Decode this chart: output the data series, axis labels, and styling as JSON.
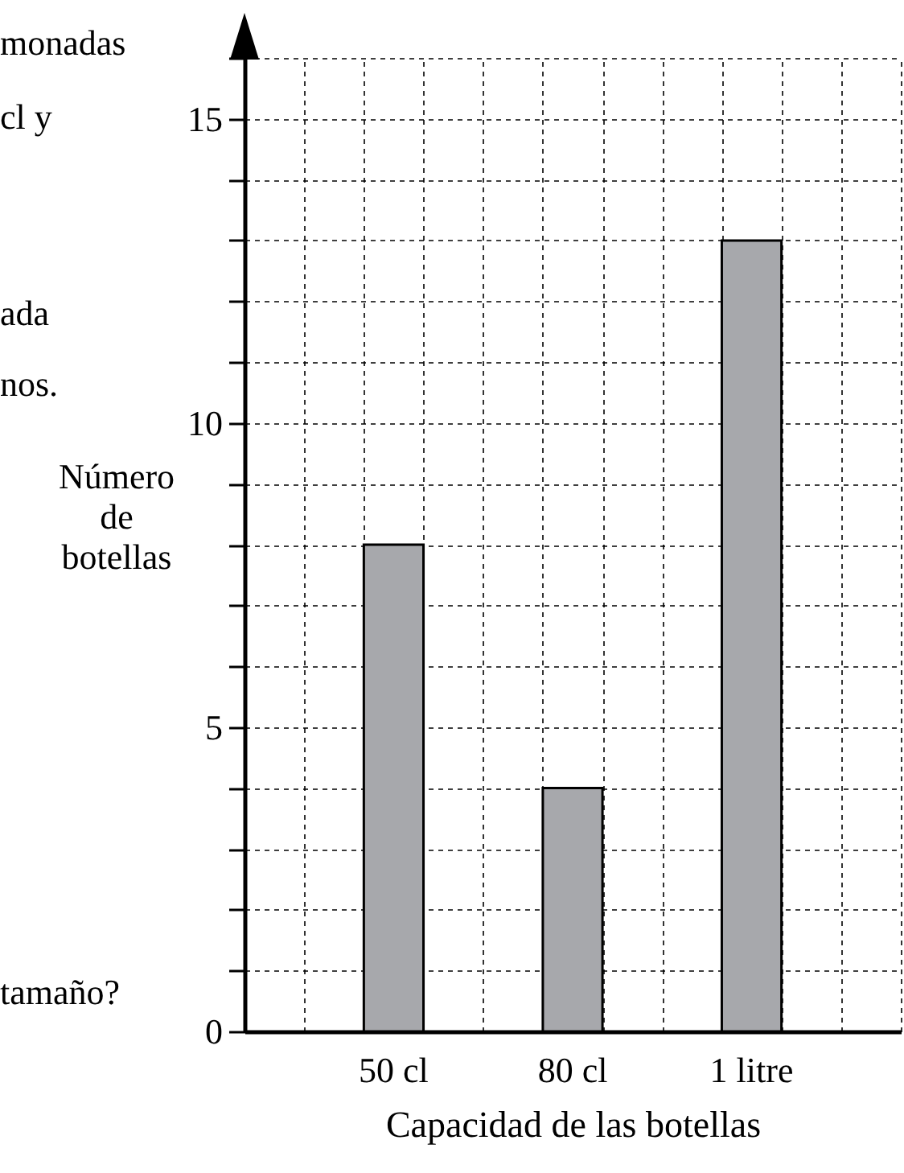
{
  "chart_data": {
    "type": "bar",
    "xlabel": "Capacidad de las botellas",
    "ylabel": "Número de botellas",
    "categories": [
      "50 cl",
      "80 cl",
      "1 litre"
    ],
    "values": [
      8,
      4,
      13
    ],
    "color": "#a7a8ac",
    "ylim": [
      0,
      16
    ],
    "yticks": [
      0,
      {
        "value": 1,
        "label": null
      },
      {
        "value": 2,
        "label": null
      },
      {
        "value": 3,
        "label": null
      },
      {
        "value": 4,
        "label": null
      },
      5,
      {
        "value": 6,
        "label": null
      },
      {
        "value": 7,
        "label": null
      },
      {
        "value": 8,
        "label": null
      },
      {
        "value": 9,
        "label": null
      },
      10,
      {
        "value": 11,
        "label": null
      },
      {
        "value": 12,
        "label": null
      },
      {
        "value": 13,
        "label": null
      },
      {
        "value": 14,
        "label": null
      },
      15,
      {
        "value": 16,
        "label": null
      }
    ],
    "grid": true,
    "annotations": [
      "monadas",
      "cl y",
      "ada",
      "nos.",
      "tamaño?"
    ]
  }
}
